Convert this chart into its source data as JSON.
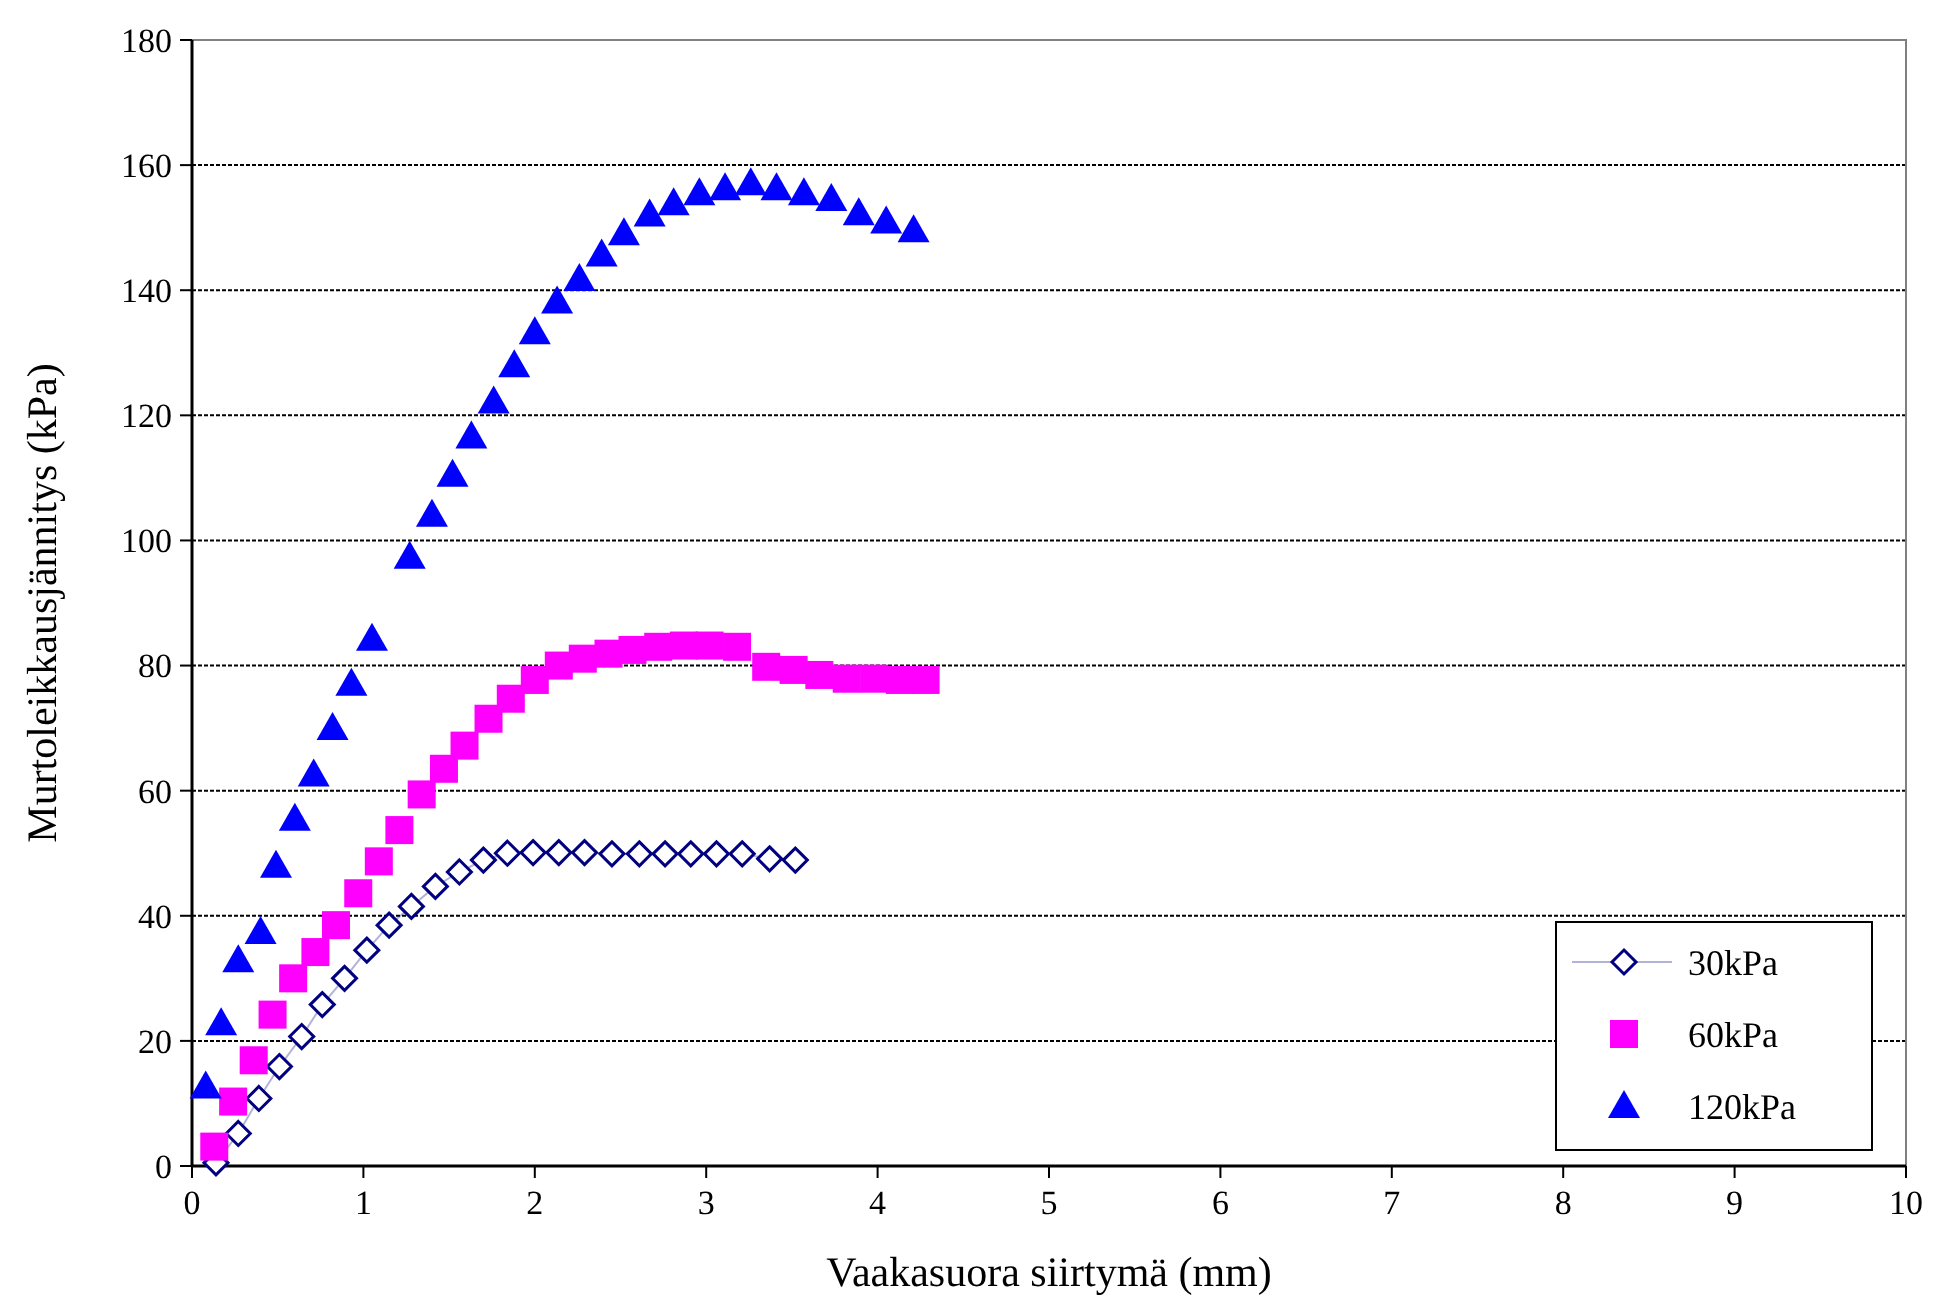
{
  "chart_data": {
    "type": "scatter",
    "xlabel": "Vaakasuora siirtymä (mm)",
    "ylabel": "Murtoleikkausjännitys (kPa)",
    "xlim": [
      0,
      10
    ],
    "xticks": [
      0,
      1,
      2,
      3,
      4,
      5,
      6,
      7,
      8,
      9,
      10
    ],
    "ylim": [
      0,
      180
    ],
    "yticks": [
      0,
      20,
      40,
      60,
      80,
      100,
      120,
      140,
      160,
      180
    ],
    "grid": "y",
    "legend": "bottom right",
    "series": [
      {
        "name": "30kPa",
        "type": "line",
        "color": "#000080",
        "marker": "diamond",
        "line_style": "solid",
        "x": [
          0.14,
          0.27,
          0.39,
          0.51,
          0.64,
          0.76,
          0.89,
          1.02,
          1.15,
          1.28,
          1.42,
          1.56,
          1.7,
          1.84,
          1.99,
          2.14,
          2.29,
          2.45,
          2.61,
          2.76,
          2.91,
          3.06,
          3.21,
          3.37,
          3.52
        ],
        "values": [
          0.5,
          5.2,
          10.8,
          15.9,
          20.7,
          25.8,
          30,
          34.5,
          38.5,
          41.5,
          44.7,
          47,
          48.9,
          50,
          50.1,
          50.1,
          50.1,
          49.9,
          49.9,
          49.9,
          49.9,
          49.9,
          49.9,
          49.1,
          48.9
        ]
      },
      {
        "name": "60kPa",
        "color": "#ff00ff",
        "marker": "square",
        "x": [
          0.13,
          0.24,
          0.36,
          0.47,
          0.59,
          0.72,
          0.84,
          0.97,
          1.09,
          1.21,
          1.34,
          1.47,
          1.59,
          1.73,
          1.86,
          2,
          2.14,
          2.28,
          2.43,
          2.57,
          2.72,
          2.87,
          3.02,
          3.18,
          3.35,
          3.51,
          3.66,
          3.82,
          3.98,
          4.13,
          4.28
        ],
        "values": [
          3.1,
          10.3,
          16.9,
          24.2,
          30,
          34.2,
          38.5,
          43.6,
          48.7,
          53.7,
          59.4,
          63.5,
          67.2,
          71.5,
          74.7,
          77.7,
          80,
          81.1,
          81.9,
          82.5,
          83,
          83.2,
          83.2,
          83,
          79.8,
          79.3,
          78.5,
          77.9,
          77.9,
          77.7,
          77.7
        ]
      },
      {
        "name": "120kPa",
        "color": "#0000ff",
        "marker": "triangle",
        "x": [
          0.08,
          0.17,
          0.27,
          0.4,
          0.49,
          0.6,
          0.71,
          0.82,
          0.93,
          1.05,
          1.27,
          1.4,
          1.52,
          1.63,
          1.76,
          1.88,
          2,
          2.13,
          2.26,
          2.39,
          2.52,
          2.67,
          2.81,
          2.96,
          3.11,
          3.26,
          3.41,
          3.57,
          3.73,
          3.89,
          4.05,
          4.21
        ],
        "values": [
          12.7,
          22.8,
          32.9,
          37.4,
          48,
          55.5,
          62.6,
          70,
          77.1,
          84.3,
          97.4,
          104.1,
          110.5,
          116.6,
          122.2,
          128,
          133.3,
          138.2,
          141.8,
          145.7,
          149.1,
          152.1,
          153.9,
          155.5,
          156.3,
          157.1,
          156.3,
          155.5,
          154.6,
          152.3,
          151,
          149.6
        ]
      }
    ]
  }
}
